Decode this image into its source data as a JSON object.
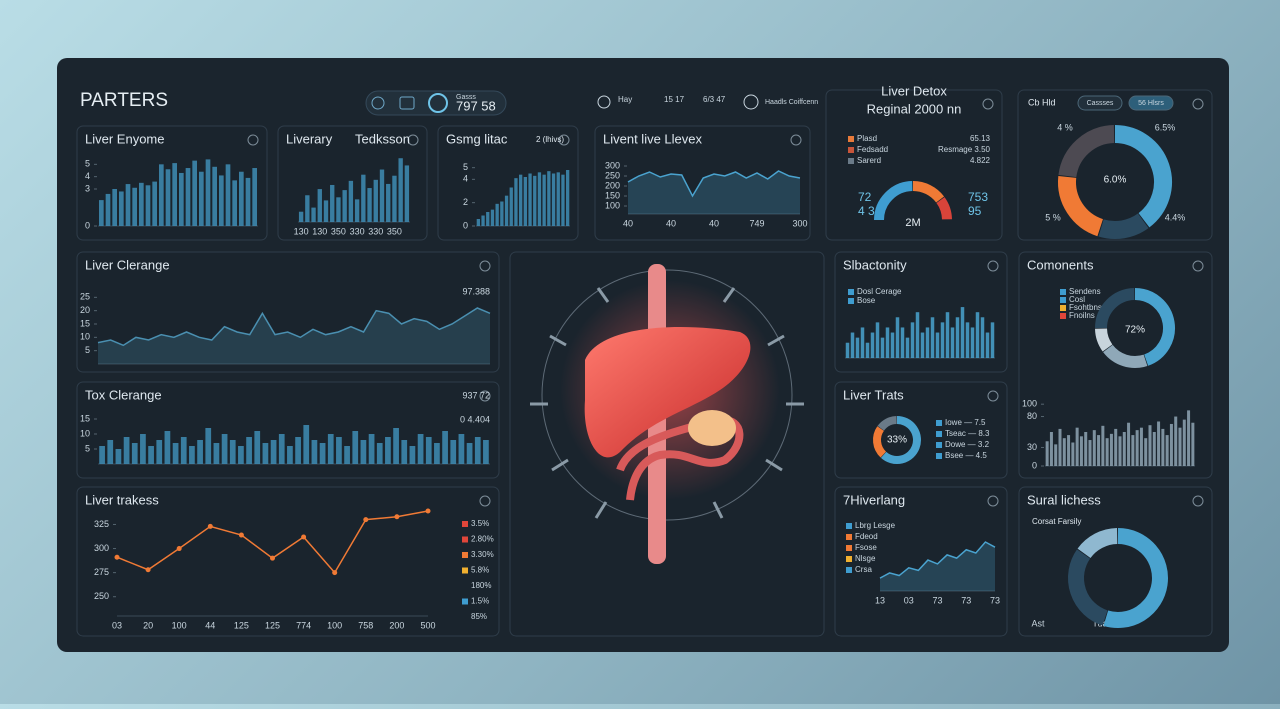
{
  "header": {
    "title": "PARTERS",
    "badge": "797 58",
    "badge_label": "Gasss",
    "stats": [
      "Hay",
      "15 17",
      "6/3 47",
      "Haadls Coiffcenn"
    ]
  },
  "chart_data": [
    {
      "type": "bar",
      "title": "Liver Enyome",
      "color": "#3f8db5",
      "ylim": [
        0,
        6
      ],
      "yticks": [
        0,
        3,
        4,
        5
      ],
      "values": [
        2.1,
        2.6,
        3,
        2.8,
        3.4,
        3.1,
        3.5,
        3.3,
        3.6,
        5,
        4.6,
        5.1,
        4.3,
        4.7,
        5.3,
        4.4,
        5.4,
        4.8,
        4.1,
        5,
        3.7,
        4.4,
        3.9,
        4.7
      ]
    },
    {
      "type": "bar",
      "title": "Liverary",
      "subtitle": "Tedksson",
      "color": "#3f8db5",
      "ylim": [
        0,
        7
      ],
      "values": [
        1,
        2.6,
        1.4,
        3.2,
        2.1,
        3.6,
        2.4,
        3.1,
        4,
        2.2,
        4.6,
        3.3,
        4.1,
        5.1,
        3.7,
        4.5,
        6.2,
        5.5
      ],
      "categories": [
        "130",
        null,
        null,
        "130",
        null,
        null,
        "350",
        null,
        null,
        "330",
        null,
        null,
        "330",
        null,
        null,
        "350",
        null,
        null
      ]
    },
    {
      "type": "bar",
      "title": "Gsmg litac",
      "subtitle": "2 (lhivs)",
      "color": "#3f8db5",
      "ylim": [
        0,
        6
      ],
      "yticks": [
        0,
        2,
        4,
        5
      ],
      "values": [
        0.6,
        0.9,
        1.2,
        1.4,
        1.9,
        2.1,
        2.6,
        3.3,
        4.1,
        4.4,
        4.2,
        4.5,
        4.3,
        4.6,
        4.4,
        4.7,
        4.5,
        4.6,
        4.4,
        4.8
      ]
    },
    {
      "type": "area",
      "title": "Livent live Llevex",
      "color": "#4aa3cf",
      "ylim": [
        60,
        340
      ],
      "yticks": [
        100,
        150,
        200,
        250,
        300
      ],
      "categories": [
        "40",
        null,
        null,
        null,
        "40",
        null,
        null,
        null,
        "40",
        null,
        null,
        null,
        "749",
        null,
        null,
        null,
        "300"
      ],
      "values": [
        220,
        250,
        270,
        245,
        260,
        255,
        150,
        240,
        260,
        250,
        270,
        240,
        265,
        235,
        275,
        250,
        240
      ]
    },
    {
      "type": "gauge",
      "title": "Liver Detox",
      "subtitle": "Reginal 2000 nn",
      "legend": [
        {
          "label": "Plasd",
          "value": "65.13",
          "color": "#e87a3a"
        },
        {
          "label": "Fedsadd",
          "value": "Resmage 3.50",
          "color": "#c8553a"
        },
        {
          "label": "Sarerd",
          "value": "4.822",
          "color": "#6a7a88"
        }
      ],
      "segments": [
        {
          "value": 50,
          "color": "#3f9dd0"
        },
        {
          "value": 30,
          "color": "#f07a35"
        },
        {
          "value": 20,
          "color": "#d9443a"
        }
      ],
      "left_labels": [
        "72",
        "4 3"
      ],
      "right_labels": [
        "753",
        "95"
      ],
      "center_label": "2M"
    },
    {
      "type": "donut",
      "title": "Cb Hld",
      "buttons": [
        "Cassses",
        "56 Hlsrs"
      ],
      "values": [
        40,
        15,
        22,
        23
      ],
      "colors": [
        "#4aa3cf",
        "#2b4a60",
        "#f07a35",
        "#4d4a52"
      ],
      "annotations": [
        "4 %",
        "6.5%",
        "5 %",
        "4.4%"
      ],
      "center_label": "6.0%"
    },
    {
      "type": "area",
      "title": "Liver Clerange",
      "color": "#4a8fb0",
      "ylim": [
        0,
        30
      ],
      "yticks": [
        5,
        10,
        15,
        20,
        25
      ],
      "annotations": [
        "97.388"
      ],
      "values": [
        8,
        9,
        7,
        10,
        9,
        11,
        10,
        12,
        10,
        9,
        14,
        12,
        11,
        19,
        11,
        12,
        10,
        13,
        11,
        12,
        14,
        12,
        20,
        19,
        15,
        17,
        16,
        13,
        15,
        18,
        21,
        19
      ]
    },
    {
      "type": "bar",
      "title": "Tox Clerange",
      "color": "#3f8db5",
      "ylim": [
        0,
        16
      ],
      "yticks": [
        5,
        10,
        15
      ],
      "annotations": [
        "937 72",
        "0 4.404"
      ],
      "values": [
        6,
        8,
        5,
        9,
        7,
        10,
        6,
        8,
        11,
        7,
        9,
        6,
        8,
        12,
        7,
        10,
        8,
        6,
        9,
        11,
        7,
        8,
        10,
        6,
        9,
        13,
        8,
        7,
        10,
        9,
        6,
        11,
        8,
        10,
        7,
        9,
        12,
        8,
        6,
        10,
        9,
        7,
        11,
        8,
        10,
        7,
        9,
        8
      ]
    },
    {
      "type": "line",
      "title": "Liver trakess",
      "color": "#f07a35",
      "ylim": [
        230,
        340
      ],
      "yticks": [
        250,
        275,
        300,
        325
      ],
      "categories": [
        "03",
        "20",
        "100",
        "44",
        "125",
        "125",
        "774",
        "100",
        "758",
        "200",
        "500"
      ],
      "values": [
        291,
        278,
        300,
        323,
        314,
        290,
        312,
        275,
        330,
        333,
        339
      ],
      "legend": [
        {
          "label": "3.5%",
          "color": "#e0463a"
        },
        {
          "label": "2.80%",
          "color": "#e0463a"
        },
        {
          "label": "3.30%",
          "color": "#f07a35"
        },
        {
          "label": "5.8%",
          "color": "#f0b030"
        },
        {
          "label": "180%"
        },
        {
          "label": "1.5%",
          "color": "#3f9dd0"
        },
        {
          "label": "85%"
        }
      ]
    },
    {
      "type": "bar",
      "title": "Slbactonity",
      "color": "#4aa3cf",
      "ylim": [
        0,
        11
      ],
      "legend": [
        {
          "label": "Dosl Cerage",
          "color": "#3f9dd0"
        },
        {
          "label": "Bose",
          "color": "#3f9dd0"
        }
      ],
      "values": [
        3,
        5,
        4,
        6,
        3,
        5,
        7,
        4,
        6,
        5,
        8,
        6,
        4,
        7,
        9,
        5,
        6,
        8,
        5,
        7,
        9,
        6,
        8,
        10,
        7,
        6,
        9,
        8,
        5,
        7
      ]
    },
    {
      "type": "donut",
      "title": "Liver Trats",
      "center_label": "33%",
      "values": [
        62,
        23,
        15
      ],
      "colors": [
        "#4aa3cf",
        "#f07a35",
        "#6a7a88"
      ],
      "legend": [
        {
          "label": "Iowe — 7.5",
          "color": "#3f9dd0"
        },
        {
          "label": "Tseac — 8.3",
          "color": "#3f9dd0"
        },
        {
          "label": "Dowe — 3.2",
          "color": "#3f9dd0"
        },
        {
          "label": "Bsee — 4.5",
          "color": "#3f9dd0"
        }
      ]
    },
    {
      "type": "area",
      "title": "7Hiverlang",
      "color": "#4aa3cf",
      "ylim": [
        0,
        9
      ],
      "legend": [
        {
          "label": "Lbrg Lesge",
          "color": "#3f9dd0"
        },
        {
          "label": "Fdeod",
          "color": "#f07a35"
        },
        {
          "label": "Fsose",
          "color": "#f07a35"
        },
        {
          "label": "Nlsge",
          "color": "#f0b030"
        },
        {
          "label": "Crsa",
          "color": "#3f9dd0"
        }
      ],
      "categories": [
        "13",
        null,
        null,
        "03",
        null,
        null,
        "73",
        null,
        null,
        "73",
        null,
        null,
        "73"
      ],
      "values": [
        2,
        2.8,
        2.4,
        3.6,
        3.2,
        4.8,
        4.2,
        5.6,
        5.1,
        6.4,
        5.9,
        7.6,
        6.8
      ]
    },
    {
      "type": "donut",
      "title": "Comonents",
      "center_label": "72%",
      "values": [
        45,
        20,
        10,
        25
      ],
      "colors": [
        "#4aa3cf",
        "#8fa8b8",
        "#c8d4dc",
        "#2b4a60"
      ],
      "legend": [
        {
          "label": "Sendens",
          "color": "#3f9dd0"
        },
        {
          "label": "Cosl",
          "color": "#3f9dd0"
        },
        {
          "label": "Fsohtbnse",
          "color": "#f0b030"
        },
        {
          "label": "Fnoilns",
          "color": "#e0463a"
        }
      ]
    },
    {
      "type": "bar",
      "color": "#8fa4b4",
      "ylim": [
        0,
        110
      ],
      "yticks": [
        0,
        30,
        80,
        100
      ],
      "values": [
        40,
        55,
        35,
        60,
        45,
        50,
        38,
        62,
        48,
        55,
        42,
        58,
        50,
        65,
        45,
        52,
        60,
        48,
        55,
        70,
        50,
        58,
        62,
        45,
        66,
        55,
        72,
        60,
        50,
        68,
        80,
        62,
        75,
        90,
        70
      ]
    },
    {
      "type": "donut",
      "title": "Sural lichess",
      "subtitle": "Corsat Farsily",
      "values": [
        55,
        30,
        15
      ],
      "colors": [
        "#4aa3cf",
        "#2b4a60",
        "#8fb8d0"
      ],
      "annotations": [
        "Ast",
        "Tua"
      ]
    }
  ]
}
